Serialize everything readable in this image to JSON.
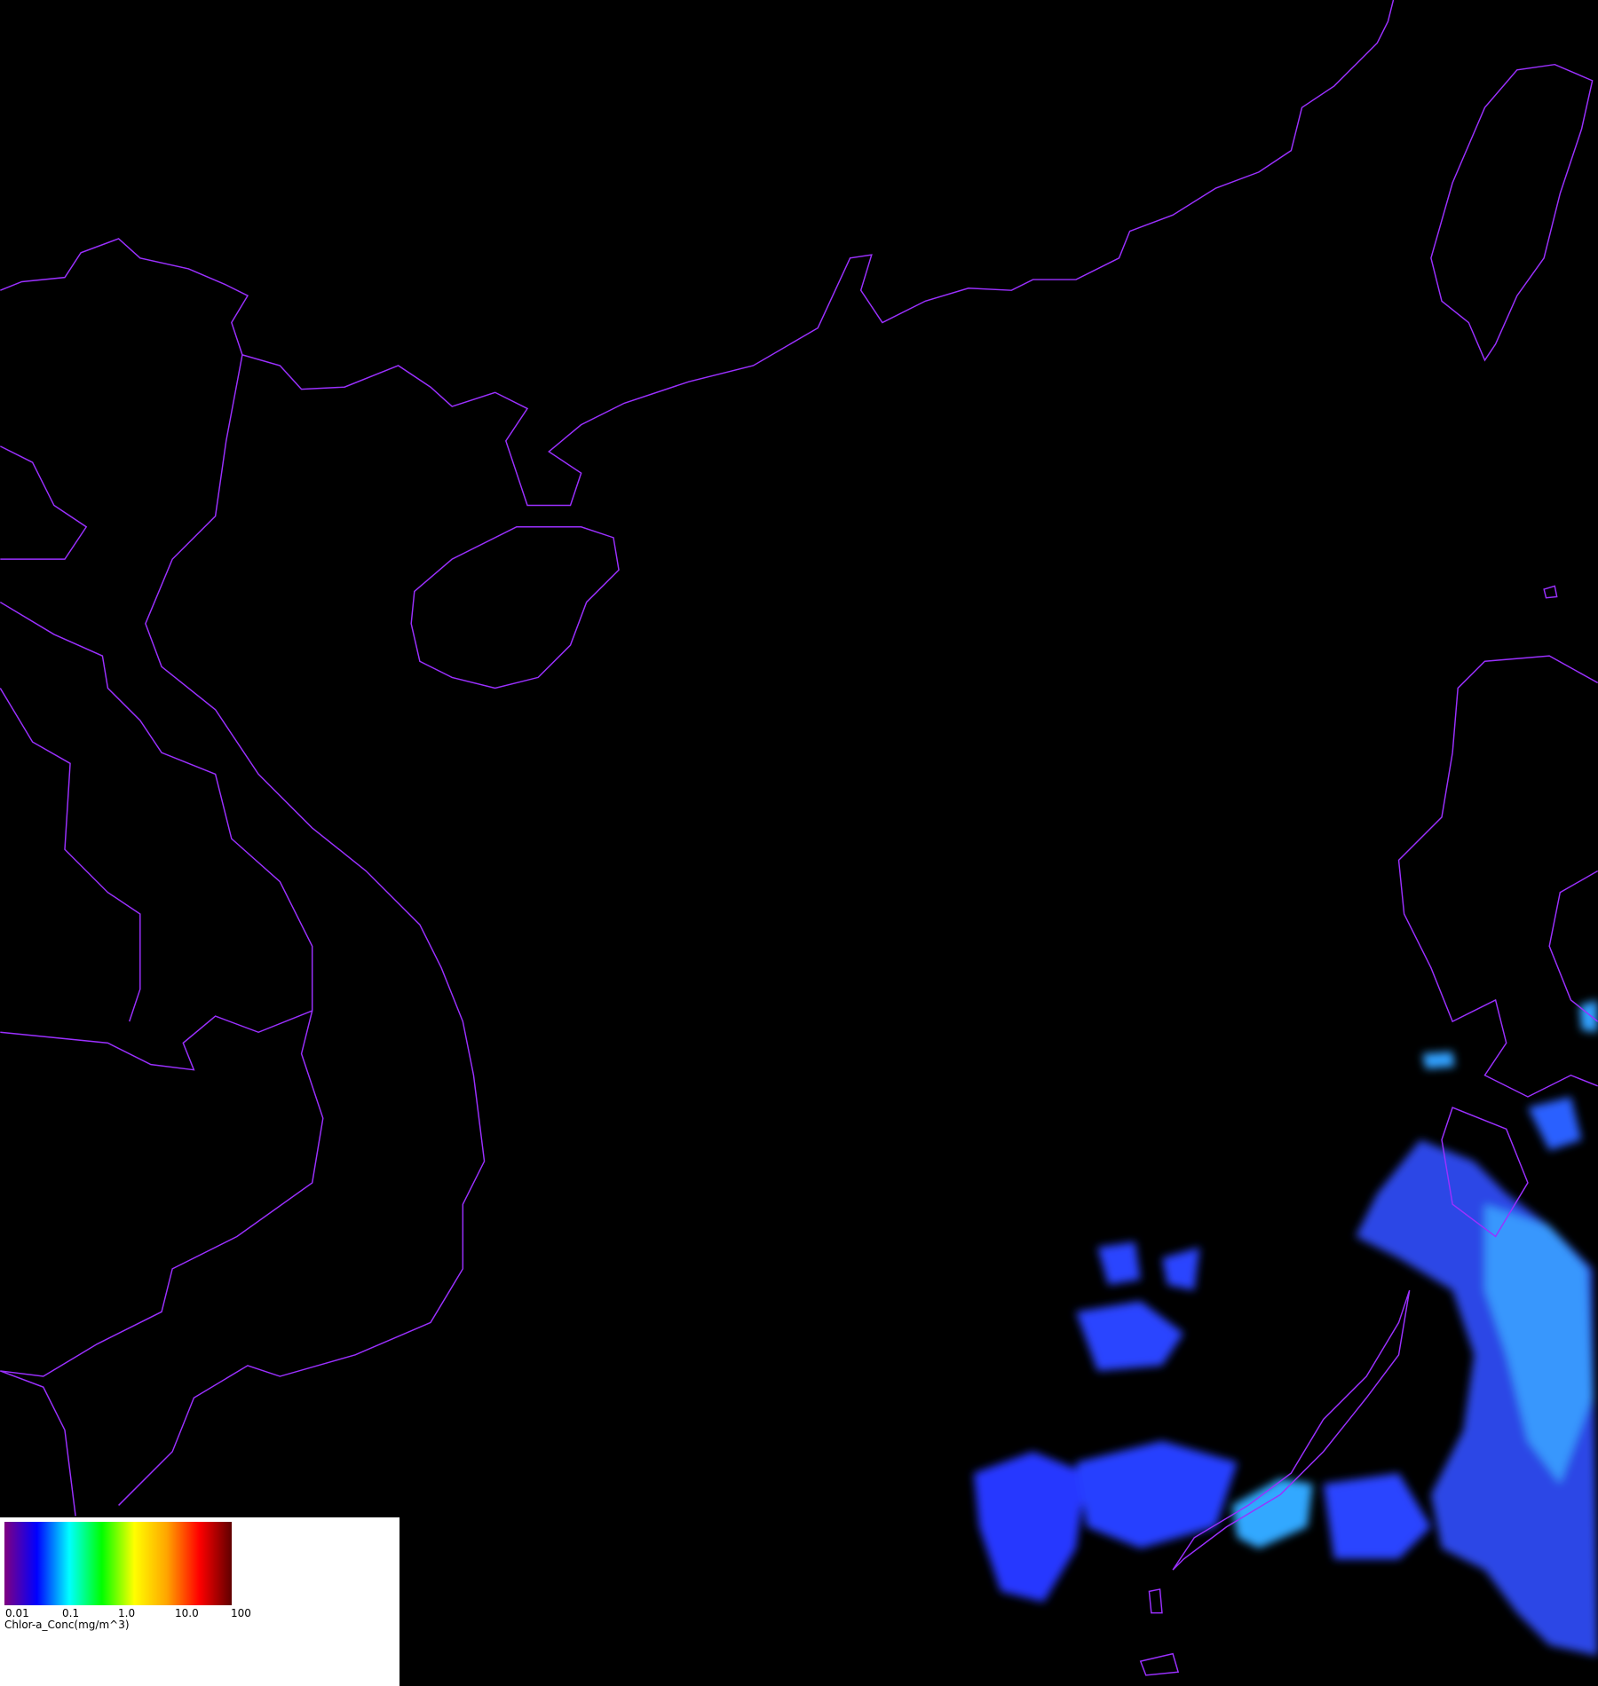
{
  "map": {
    "coastline_color": "#9b30ff",
    "background_color": "#000000",
    "regions": [
      "south-china-coast",
      "hainan",
      "taiwan",
      "vietnam",
      "laos",
      "cambodia",
      "luzon",
      "palawan"
    ]
  },
  "legend": {
    "ticks": [
      "0.01",
      "0.1",
      "1.0",
      "10.0",
      "100"
    ],
    "caption": "Chlor-a_Conc(mg/m^3)",
    "scale": "log",
    "range": [
      0.01,
      100
    ],
    "colormap": [
      "#800080",
      "#0000ff",
      "#00ffff",
      "#00ff00",
      "#ffff00",
      "#ffa500",
      "#ff0000",
      "#600000"
    ]
  }
}
